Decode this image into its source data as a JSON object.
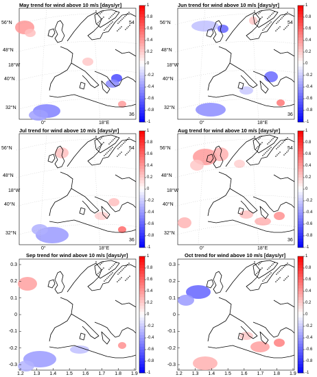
{
  "panels": [
    {
      "id": "may",
      "title": "May trend for wind above 10 m/s [days/yr]",
      "lat_labels": [
        "56°N",
        "48°N",
        "40°N",
        "32°N"
      ],
      "lon_labels": [
        "0°",
        "18°E"
      ],
      "edge_labels": [
        "18°W",
        "54",
        "36"
      ]
    },
    {
      "id": "jun",
      "title": "Jun trend for wind above 10 m/s [days/yr]",
      "lat_labels": [
        "56°N",
        "48°N",
        "40°N",
        "32°N"
      ],
      "lon_labels": [
        "0°",
        "18°E"
      ],
      "edge_labels": [
        "18°W",
        "54",
        "36"
      ]
    },
    {
      "id": "jul",
      "title": "Jul trend for wind above 10 m/s [days/yr]",
      "lat_labels": [
        "56°N",
        "48°N",
        "40°N",
        "32°N"
      ],
      "lon_labels": [
        "0°",
        "18°E"
      ],
      "edge_labels": [
        "18°W",
        "54",
        "36"
      ]
    },
    {
      "id": "aug",
      "title": "Aug trend for wind above 10 m/s [days/yr]",
      "lat_labels": [
        "56°N",
        "48°N",
        "40°N",
        "32°N"
      ],
      "lon_labels": [
        "0°",
        "18°E"
      ],
      "edge_labels": [
        "18°W",
        "54",
        "36"
      ]
    },
    {
      "id": "sep",
      "title": "Sep trend for wind above 10 m/s [days/yr]",
      "y_ticks": [
        "0.3",
        "0.2",
        "0.1",
        "0",
        "-0.1",
        "-0.2",
        "-0.3"
      ],
      "x_ticks": [
        "1.2",
        "1.3",
        "1.4",
        "1.5",
        "1.6",
        "1.7",
        "1.8",
        "1.9"
      ]
    },
    {
      "id": "oct",
      "title": "Oct trend for wind above 10 m/s [days/yr]",
      "y_ticks": [
        "0.3",
        "0.2",
        "0.1",
        "0",
        "-0.1",
        "-0.2",
        "-0.3"
      ],
      "x_ticks": [
        "1.2",
        "1.3",
        "1.4",
        "1.5",
        "1.6",
        "1.7",
        "1.8",
        "1.9"
      ]
    }
  ],
  "colorbar": {
    "ticks": [
      "1",
      "0.8",
      "0.6",
      "0.4",
      "0.2",
      "0",
      "-0.2",
      "-0.4",
      "-0.6",
      "-0.8",
      "-1"
    ],
    "range": [
      -1,
      1
    ],
    "colors": {
      "max": "#ff0000",
      "zero": "#ffffff",
      "min": "#0000ff"
    }
  }
}
